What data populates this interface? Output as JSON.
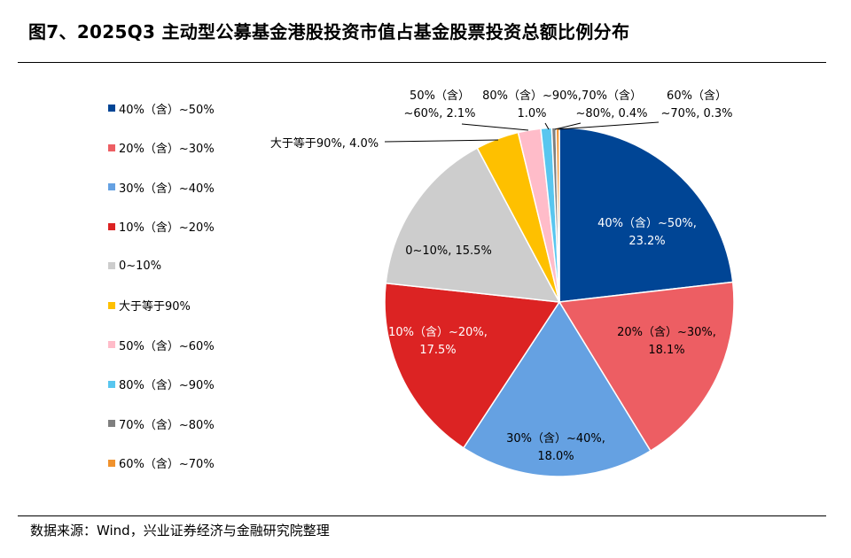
{
  "title": "图7、2025Q3 主动型公募基金港股投资市值占基金股票投资总额比例分布",
  "source": "数据来源：Wind，兴业证券经济与金融研究院整理",
  "chart_data": {
    "type": "pie",
    "title": "",
    "slices": [
      {
        "name": "40%（含）~50%",
        "value": 23.2,
        "color": "#004595",
        "label": [
          "40%（含）~50%,",
          "23.2%"
        ],
        "label_color": "#ffffff",
        "inside": true
      },
      {
        "name": "20%（含）~30%",
        "value": 18.1,
        "color": "#ED5E63",
        "label": [
          "20%（含）~30%,",
          "18.1%"
        ],
        "label_color": "#000000",
        "inside": true
      },
      {
        "name": "30%（含）~40%",
        "value": 18.0,
        "color": "#65A1E2",
        "label": [
          "30%（含）~40%,",
          "18.0%"
        ],
        "label_color": "#000000",
        "inside": true
      },
      {
        "name": "10%（含）~20%",
        "value": 17.5,
        "color": "#DC2323",
        "label": [
          "10%（含）~20%,",
          "17.5%"
        ],
        "label_color": "#ffffff",
        "inside": true
      },
      {
        "name": "0~10%",
        "value": 15.5,
        "color": "#CDCDCD",
        "label": [
          "0~10%, 15.5%"
        ],
        "label_color": "#000000",
        "inside": true
      },
      {
        "name": "大于等于90%",
        "value": 4.0,
        "color": "#FEC000",
        "label": [
          "大于等于90%, 4.0%"
        ],
        "label_color": "#000000",
        "inside": false
      },
      {
        "name": "50%（含）~60%",
        "value": 2.1,
        "color": "#FFBCC9",
        "label": [
          "50%（含）",
          "~60%, 2.1%"
        ],
        "label_color": "#000000",
        "inside": false
      },
      {
        "name": "80%（含）~90%",
        "value": 1.0,
        "color": "#58C6EF",
        "label": [
          "80%（含）~90%,",
          "1.0%"
        ],
        "label_color": "#000000",
        "inside": false
      },
      {
        "name": "70%（含）~80%",
        "value": 0.4,
        "color": "#7F7F7F",
        "label": [
          "70%（含）",
          "~80%, 0.4%"
        ],
        "label_color": "#000000",
        "inside": false
      },
      {
        "name": "60%（含）~70%",
        "value": 0.3,
        "color": "#F0922D",
        "label": [
          "60%（含）",
          "~70%, 0.3%"
        ],
        "label_color": "#000000",
        "inside": false
      }
    ],
    "legend": {
      "placement": "left",
      "entries": [
        "40%（含）~50%",
        "20%（含）~30%",
        "30%（含）~40%",
        "10%（含）~20%",
        "0~10%",
        "大于等于90%",
        "50%（含）~60%",
        "80%（含）~90%",
        "70%（含）~80%",
        "60%（含）~70%"
      ]
    }
  }
}
